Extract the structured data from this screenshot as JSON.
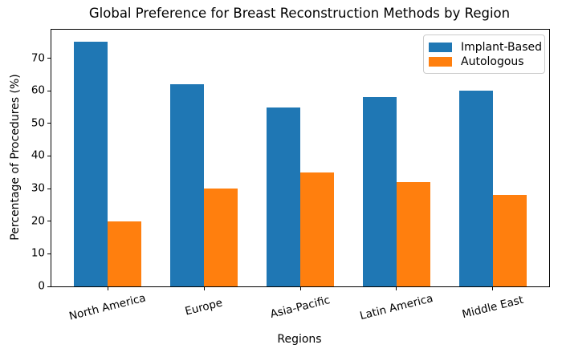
{
  "chart_data": {
    "type": "bar",
    "title": "Global Preference for Breast Reconstruction Methods by Region",
    "categories": [
      "North America",
      "Europe",
      "Asia-Pacific",
      "Latin America",
      "Middle East"
    ],
    "series": [
      {
        "name": "Implant-Based",
        "color": "#1f77b4",
        "values": [
          75,
          62,
          55,
          58,
          60
        ]
      },
      {
        "name": "Autologous",
        "color": "#ff7f0e",
        "values": [
          20,
          30,
          35,
          32,
          28
        ]
      }
    ],
    "xlabel": "Regions",
    "ylabel": "Percentage of Procedures (%)",
    "ylim": [
      0,
      78.75
    ],
    "yticks": [
      0,
      10,
      20,
      30,
      40,
      50,
      60,
      70
    ],
    "bar_width_units": 0.35,
    "x_range_units": [
      -0.585,
      4.585
    ],
    "tick_label_rotation_deg": 14,
    "grid": false,
    "legend": {
      "position": "upper right",
      "entries": [
        "Implant-Based",
        "Autologous"
      ]
    }
  }
}
